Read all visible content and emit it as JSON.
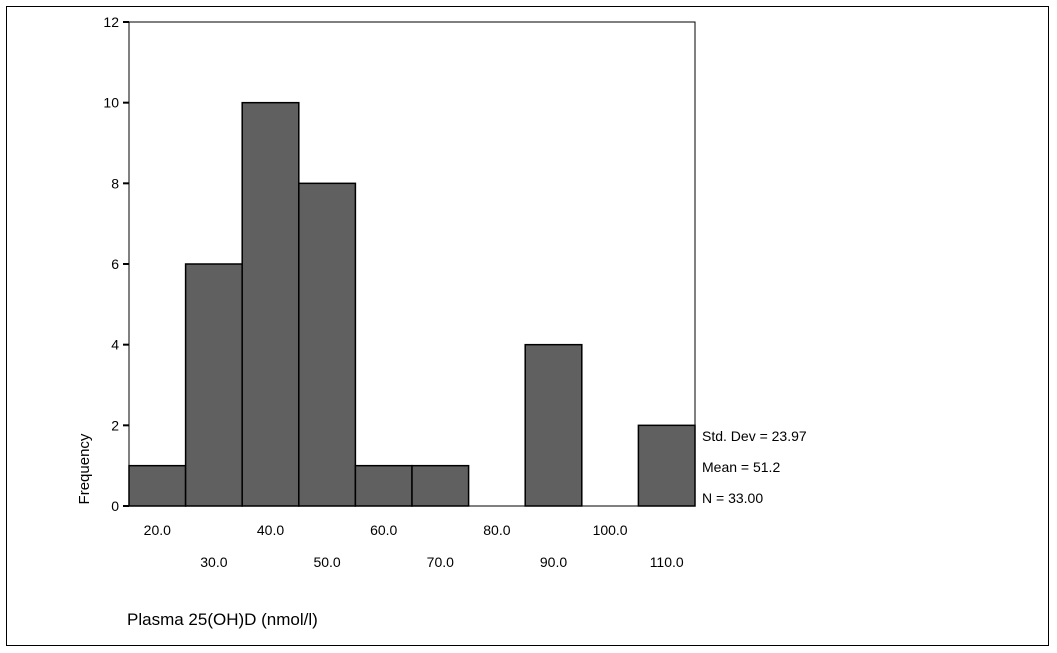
{
  "chart_data": {
    "type": "bar",
    "title": "",
    "xlabel": "Plasma 25(OH)D (nmol/l)",
    "ylabel": "Frequency",
    "categories": [
      "20.0",
      "30.0",
      "40.0",
      "50.0",
      "60.0",
      "70.0",
      "80.0",
      "90.0",
      "100.0",
      "110.0"
    ],
    "values": [
      1,
      6,
      10,
      8,
      1,
      1,
      0,
      4,
      0,
      2
    ],
    "ylim": [
      0,
      12
    ],
    "yticks": [
      "0",
      "2",
      "4",
      "6",
      "8",
      "10",
      "12"
    ],
    "stats": [
      "Std. Dev = 23.97",
      "Mean = 51.2",
      "N = 33.00"
    ],
    "colors": {
      "bar": "#606060",
      "edge": "#000000"
    }
  }
}
